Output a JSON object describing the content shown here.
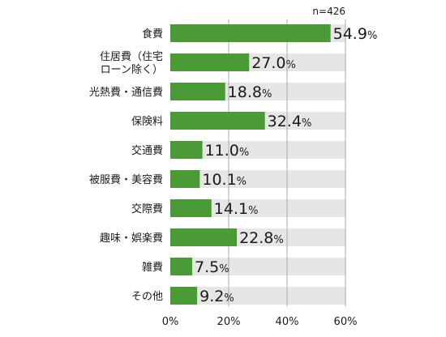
{
  "chart_data": {
    "type": "bar",
    "orientation": "horizontal",
    "sample_note": "n=426",
    "categories": [
      [
        "食費"
      ],
      [
        "住居費（住宅",
        "ローン除く）"
      ],
      [
        "光熱費・通信費"
      ],
      [
        "保険料"
      ],
      [
        "交通費"
      ],
      [
        "被服費・美容費"
      ],
      [
        "交際費"
      ],
      [
        "趣味・娯楽費"
      ],
      [
        "雑費"
      ],
      [
        "その他"
      ]
    ],
    "values": [
      54.9,
      27.0,
      18.8,
      32.4,
      11.0,
      10.1,
      14.1,
      22.8,
      7.5,
      9.2
    ],
    "value_labels": [
      "54.9",
      "27.0",
      "18.8",
      "32.4",
      "11.0",
      "10.1",
      "14.1",
      "22.8",
      "7.5",
      "9.2"
    ],
    "value_unit": "%",
    "xlim": [
      0,
      60
    ],
    "xticks": [
      "0%",
      "20%",
      "40%",
      "60%"
    ],
    "grid": true,
    "colors": {
      "bar": "#4a9a37",
      "track": "#e6e6e6",
      "grid": "#aaaaaa"
    }
  }
}
